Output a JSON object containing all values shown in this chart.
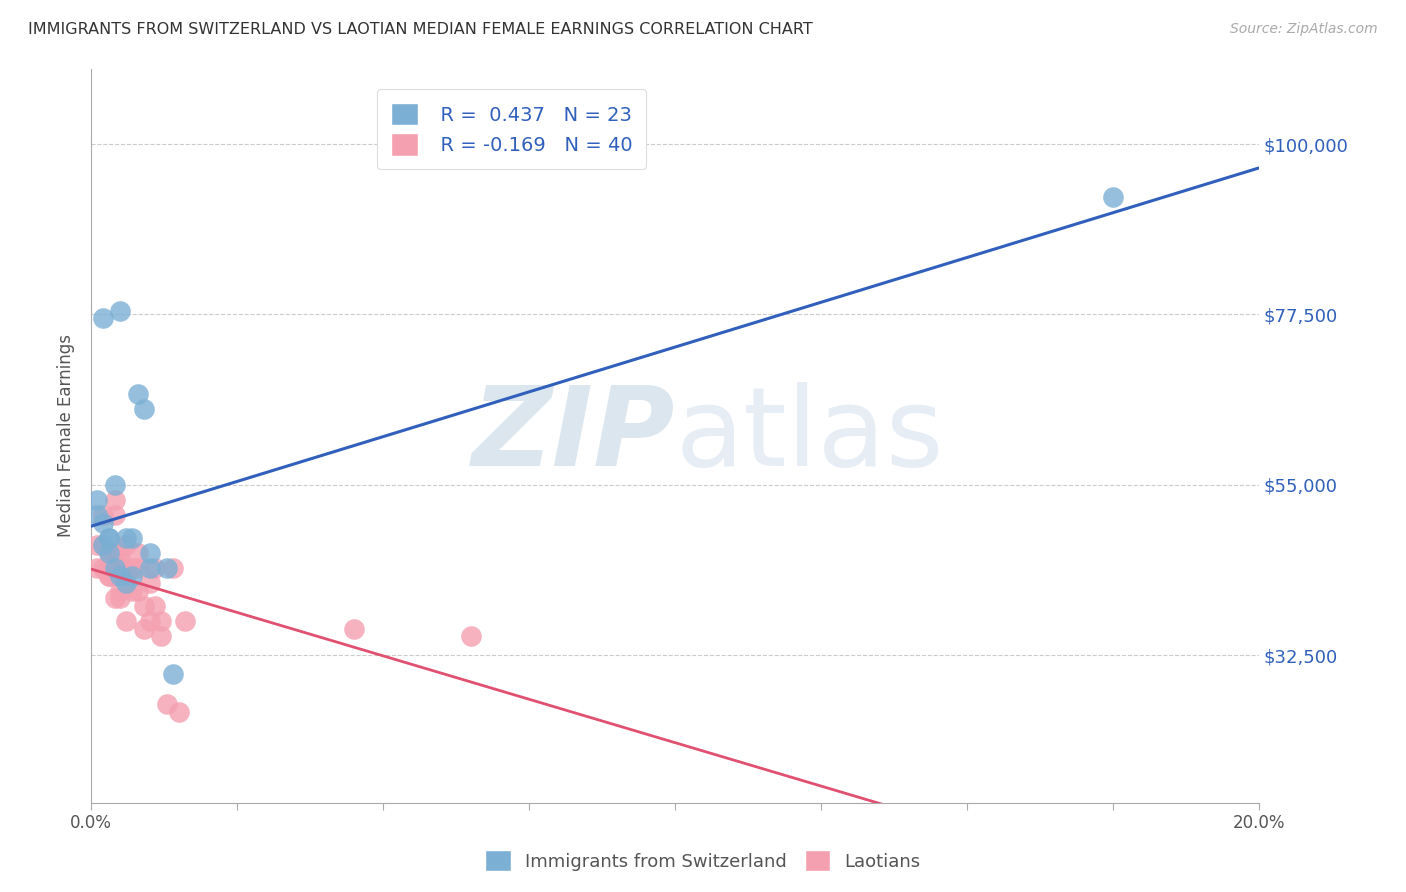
{
  "title": "IMMIGRANTS FROM SWITZERLAND VS LAOTIAN MEDIAN FEMALE EARNINGS CORRELATION CHART",
  "source": "Source: ZipAtlas.com",
  "ylabel": "Median Female Earnings",
  "yticks": [
    32500,
    55000,
    77500,
    100000
  ],
  "ytick_labels": [
    "$32,500",
    "$55,000",
    "$77,500",
    "$100,000"
  ],
  "xlim": [
    0.0,
    0.2
  ],
  "ylim": [
    13000,
    110000
  ],
  "legend1_r": "R =  0.437",
  "legend1_n": "N = 23",
  "legend2_r": "R = -0.169",
  "legend2_n": "N = 40",
  "blue_color": "#7BAFD4",
  "pink_color": "#F4A0B0",
  "line_blue": "#3060BB",
  "line_pink": "#E05070",
  "watermark_zip": "ZIP",
  "watermark_atlas": "atlas",
  "swiss_x": [
    0.001,
    0.002,
    0.002,
    0.003,
    0.003,
    0.003,
    0.004,
    0.004,
    0.005,
    0.005,
    0.006,
    0.007,
    0.007,
    0.008,
    0.01,
    0.01,
    0.013,
    0.014,
    0.175,
    0.001,
    0.002,
    0.006,
    0.009
  ],
  "swiss_y": [
    53000,
    77000,
    47000,
    48000,
    48000,
    46000,
    55000,
    44000,
    43000,
    78000,
    48000,
    43000,
    48000,
    67000,
    44000,
    46000,
    44000,
    30000,
    93000,
    51000,
    50000,
    42000,
    65000
  ],
  "laotian_x": [
    0.001,
    0.001,
    0.002,
    0.002,
    0.002,
    0.003,
    0.003,
    0.003,
    0.003,
    0.004,
    0.004,
    0.004,
    0.004,
    0.004,
    0.005,
    0.005,
    0.005,
    0.005,
    0.006,
    0.006,
    0.006,
    0.007,
    0.007,
    0.008,
    0.008,
    0.008,
    0.009,
    0.009,
    0.01,
    0.01,
    0.011,
    0.011,
    0.012,
    0.012,
    0.013,
    0.014,
    0.015,
    0.016,
    0.045,
    0.065
  ],
  "laotian_y": [
    44000,
    47000,
    44000,
    47000,
    51000,
    46000,
    43000,
    43000,
    44000,
    53000,
    51000,
    46000,
    43000,
    40000,
    46000,
    45000,
    41000,
    40000,
    47000,
    44000,
    37000,
    44000,
    41000,
    46000,
    44000,
    41000,
    39000,
    36000,
    42000,
    37000,
    44000,
    39000,
    35000,
    37000,
    26000,
    44000,
    25000,
    37000,
    36000,
    35000
  ],
  "legend_items": [
    "Immigrants from Switzerland",
    "Laotians"
  ],
  "xtick_positions": [
    0.0,
    0.025,
    0.05,
    0.075,
    0.1,
    0.125,
    0.15,
    0.175,
    0.2
  ],
  "xtick_show": [
    true,
    false,
    false,
    false,
    false,
    false,
    false,
    false,
    true
  ]
}
